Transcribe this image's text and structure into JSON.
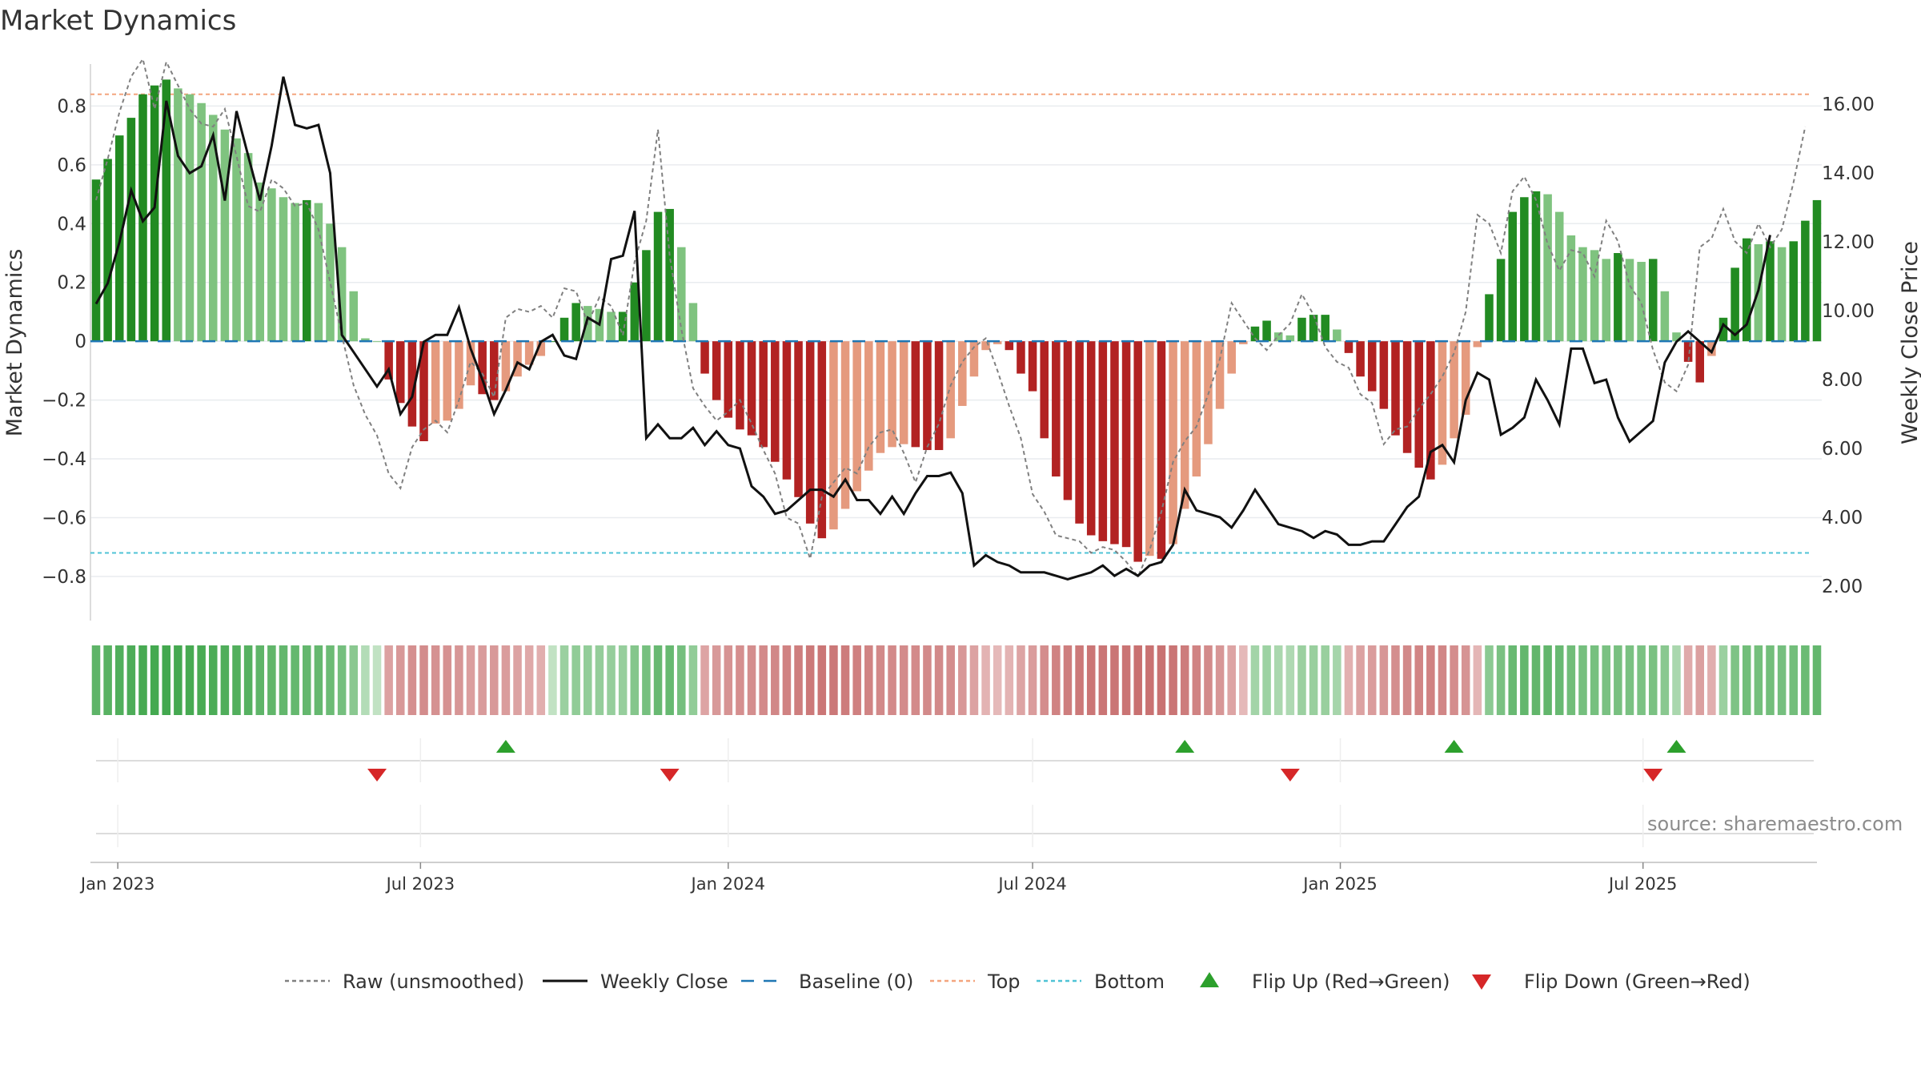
{
  "title": "Market Dynamics",
  "source": "source: sharemaestro.com",
  "chart_data": {
    "type": "bar",
    "x_start": "2022-12-19",
    "x_step_days": 7,
    "x_ticks": [
      {
        "date": "2023-01-01",
        "label": "Jan 2023"
      },
      {
        "date": "2023-07-01",
        "label": "Jul 2023"
      },
      {
        "date": "2024-01-01",
        "label": "Jan 2024"
      },
      {
        "date": "2024-07-01",
        "label": "Jul 2024"
      },
      {
        "date": "2025-01-01",
        "label": "Jan 2025"
      },
      {
        "date": "2025-07-01",
        "label": "Jul 2025"
      }
    ],
    "ylabel": "Market Dynamics",
    "ylim": [
      -0.95,
      0.97
    ],
    "yticks": [
      0.8,
      0.6,
      0.4,
      0.2,
      0,
      -0.2,
      -0.4,
      -0.6,
      -0.8
    ],
    "ytick_labels": [
      "0.8",
      "0.6",
      "0.4",
      "0.2",
      "0",
      "−0.2",
      "−0.4",
      "−0.6",
      "−0.8"
    ],
    "y2label": "Weekly Close Price",
    "y2lim": [
      1.0,
      17.4
    ],
    "y2ticks": [
      2,
      4,
      6,
      8,
      10,
      12,
      14,
      16
    ],
    "y2tick_labels": [
      "2.00",
      "4.00",
      "6.00",
      "8.00",
      "10.00",
      "12.00",
      "14.00",
      "16.00"
    ],
    "top_level": 0.84,
    "bottom_level": -0.72,
    "colors": {
      "dark_green": "#228b22",
      "light_green": "#7fc37f",
      "dark_red": "#b22222",
      "light_red": "#e59a7e",
      "raw": "#808080",
      "close": "#111111",
      "baseline": "#1f77b4",
      "top": "#f4a57e",
      "bottom": "#4fc3d6",
      "flip_up": "#2ca02c",
      "flip_down": "#d62728"
    },
    "series": [
      {
        "name": "Market Dynamics",
        "values": [
          0.55,
          0.62,
          0.7,
          0.76,
          0.84,
          0.87,
          0.89,
          0.86,
          0.84,
          0.81,
          0.77,
          0.72,
          0.69,
          0.64,
          0.54,
          0.52,
          0.49,
          0.47,
          0.48,
          0.47,
          0.4,
          0.32,
          0.17,
          0.01,
          0,
          -0.13,
          -0.21,
          -0.29,
          -0.34,
          -0.28,
          -0.27,
          -0.23,
          -0.15,
          -0.18,
          -0.2,
          -0.17,
          -0.12,
          -0.08,
          -0.05,
          0,
          0.08,
          0.13,
          0.12,
          0.11,
          0.1,
          0.1,
          0.2,
          0.31,
          0.44,
          0.45,
          0.32,
          0.13,
          -0.11,
          -0.2,
          -0.26,
          -0.3,
          -0.32,
          -0.36,
          -0.41,
          -0.47,
          -0.53,
          -0.62,
          -0.67,
          -0.64,
          -0.57,
          -0.51,
          -0.44,
          -0.38,
          -0.36,
          -0.35,
          -0.36,
          -0.37,
          -0.37,
          -0.33,
          -0.22,
          -0.12,
          -0.03,
          -0.01,
          -0.03,
          -0.11,
          -0.17,
          -0.33,
          -0.46,
          -0.54,
          -0.62,
          -0.66,
          -0.68,
          -0.69,
          -0.7,
          -0.75,
          -0.73,
          -0.74,
          -0.69,
          -0.57,
          -0.46,
          -0.35,
          -0.23,
          -0.11,
          -0.01,
          0.05,
          0.07,
          0.03,
          0.02,
          0.08,
          0.09,
          0.09,
          0.04,
          -0.04,
          -0.12,
          -0.17,
          -0.23,
          -0.32,
          -0.38,
          -0.43,
          -0.47,
          -0.42,
          -0.33,
          -0.25,
          -0.02,
          0.16,
          0.28,
          0.44,
          0.49,
          0.51,
          0.5,
          0.44,
          0.36,
          0.32,
          0.31,
          0.28,
          0.3,
          0.28,
          0.27,
          0.28,
          0.17,
          0.03,
          -0.07,
          -0.14,
          -0.05,
          0.08,
          0.25,
          0.35,
          0.33,
          0.34,
          0.32,
          0.34,
          0.41,
          0.48
        ]
      },
      {
        "name": "Raw (unsmoothed)",
        "values": [
          0.48,
          0.62,
          0.78,
          0.9,
          0.96,
          0.79,
          0.95,
          0.87,
          0.79,
          0.74,
          0.73,
          0.79,
          0.63,
          0.46,
          0.44,
          0.55,
          0.52,
          0.46,
          0.47,
          0.38,
          0.2,
          0.02,
          -0.15,
          -0.25,
          -0.32,
          -0.45,
          -0.5,
          -0.36,
          -0.3,
          -0.27,
          -0.31,
          -0.2,
          -0.07,
          -0.11,
          -0.19,
          0.08,
          0.11,
          0.1,
          0.12,
          0.08,
          0.18,
          0.17,
          0.06,
          0.15,
          0.12,
          0.02,
          0.27,
          0.41,
          0.72,
          0.29,
          0.04,
          -0.16,
          -0.22,
          -0.27,
          -0.24,
          -0.2,
          -0.28,
          -0.37,
          -0.45,
          -0.6,
          -0.62,
          -0.74,
          -0.53,
          -0.48,
          -0.43,
          -0.45,
          -0.36,
          -0.31,
          -0.3,
          -0.38,
          -0.48,
          -0.36,
          -0.28,
          -0.15,
          -0.07,
          -0.02,
          0.01,
          -0.1,
          -0.22,
          -0.33,
          -0.52,
          -0.58,
          -0.66,
          -0.67,
          -0.68,
          -0.72,
          -0.7,
          -0.71,
          -0.75,
          -0.8,
          -0.71,
          -0.58,
          -0.41,
          -0.34,
          -0.29,
          -0.18,
          -0.06,
          0.13,
          0.07,
          0.01,
          -0.03,
          0.02,
          0.06,
          0.16,
          0.09,
          -0.02,
          -0.07,
          -0.09,
          -0.18,
          -0.21,
          -0.35,
          -0.3,
          -0.29,
          -0.23,
          -0.18,
          -0.12,
          -0.04,
          0.1,
          0.43,
          0.4,
          0.3,
          0.51,
          0.56,
          0.48,
          0.33,
          0.24,
          0.31,
          0.3,
          0.22,
          0.41,
          0.34,
          0.19,
          0.13,
          -0.03,
          -0.14,
          -0.17,
          -0.08,
          0.32,
          0.35,
          0.45,
          0.34,
          0.3,
          0.4,
          0.32,
          0.38,
          0.54,
          0.73
        ]
      },
      {
        "name": "Weekly Close",
        "values": [
          10.2,
          10.8,
          12.0,
          13.5,
          12.6,
          13.0,
          16.1,
          14.5,
          14.0,
          14.2,
          15.1,
          13.2,
          15.8,
          14.5,
          13.2,
          14.8,
          16.8,
          15.4,
          15.3,
          15.4,
          14.0,
          9.3,
          8.8,
          8.3,
          7.8,
          8.3,
          7.0,
          7.5,
          9.1,
          9.3,
          9.3,
          10.1,
          8.9,
          8.0,
          7.0,
          7.7,
          8.5,
          8.3,
          9.1,
          9.3,
          8.7,
          8.6,
          9.8,
          9.6,
          11.5,
          11.6,
          12.9,
          6.3,
          6.7,
          6.3,
          6.3,
          6.6,
          6.1,
          6.5,
          6.1,
          6.0,
          4.9,
          4.6,
          4.1,
          4.2,
          4.5,
          4.8,
          4.8,
          4.6,
          5.1,
          4.5,
          4.5,
          4.1,
          4.6,
          4.1,
          4.7,
          5.2,
          5.2,
          5.3,
          4.7,
          2.6,
          2.9,
          2.7,
          2.6,
          2.4,
          2.4,
          2.4,
          2.3,
          2.2,
          2.3,
          2.4,
          2.6,
          2.3,
          2.5,
          2.3,
          2.6,
          2.7,
          3.2,
          4.8,
          4.2,
          4.1,
          4.0,
          3.7,
          4.2,
          4.8,
          4.3,
          3.8,
          3.7,
          3.6,
          3.4,
          3.6,
          3.5,
          3.2,
          3.2,
          3.3,
          3.3,
          3.8,
          4.3,
          4.6,
          5.9,
          6.1,
          5.6,
          7.4,
          8.2,
          8.0,
          6.4,
          6.6,
          6.9,
          8.0,
          7.4,
          6.7,
          8.9,
          8.9,
          7.9,
          8.0,
          6.9,
          6.2,
          6.5,
          6.8,
          8.5,
          9.1,
          9.4,
          9.1,
          8.8,
          9.6,
          9.3,
          9.6,
          10.6,
          12.2
        ]
      }
    ],
    "regime_strip": "green shading when positive, red shading when negative, intensity by magnitude",
    "flip_up_dates": [
      "2023-08-21",
      "2024-09-30",
      "2025-03-10",
      "2025-07-21"
    ],
    "flip_down_dates": [
      "2023-06-05",
      "2023-11-27",
      "2024-12-02",
      "2025-07-07"
    ],
    "legend": [
      {
        "label": "Raw (unsmoothed)",
        "style": "dashed",
        "color": "#808080"
      },
      {
        "label": "Weekly Close",
        "style": "solid",
        "color": "#111111"
      },
      {
        "label": "Baseline (0)",
        "style": "dash-long",
        "color": "#1f77b4"
      },
      {
        "label": "Top",
        "style": "dotted",
        "color": "#f4a57e"
      },
      {
        "label": "Bottom",
        "style": "dotted",
        "color": "#4fc3d6"
      },
      {
        "label": "Flip Up (Red→Green)",
        "style": "triangle-up",
        "color": "#2ca02c"
      },
      {
        "label": "Flip Down (Green→Red)",
        "style": "triangle-down",
        "color": "#d62728"
      }
    ],
    "legend_position": "bottom-center",
    "grid": true
  }
}
